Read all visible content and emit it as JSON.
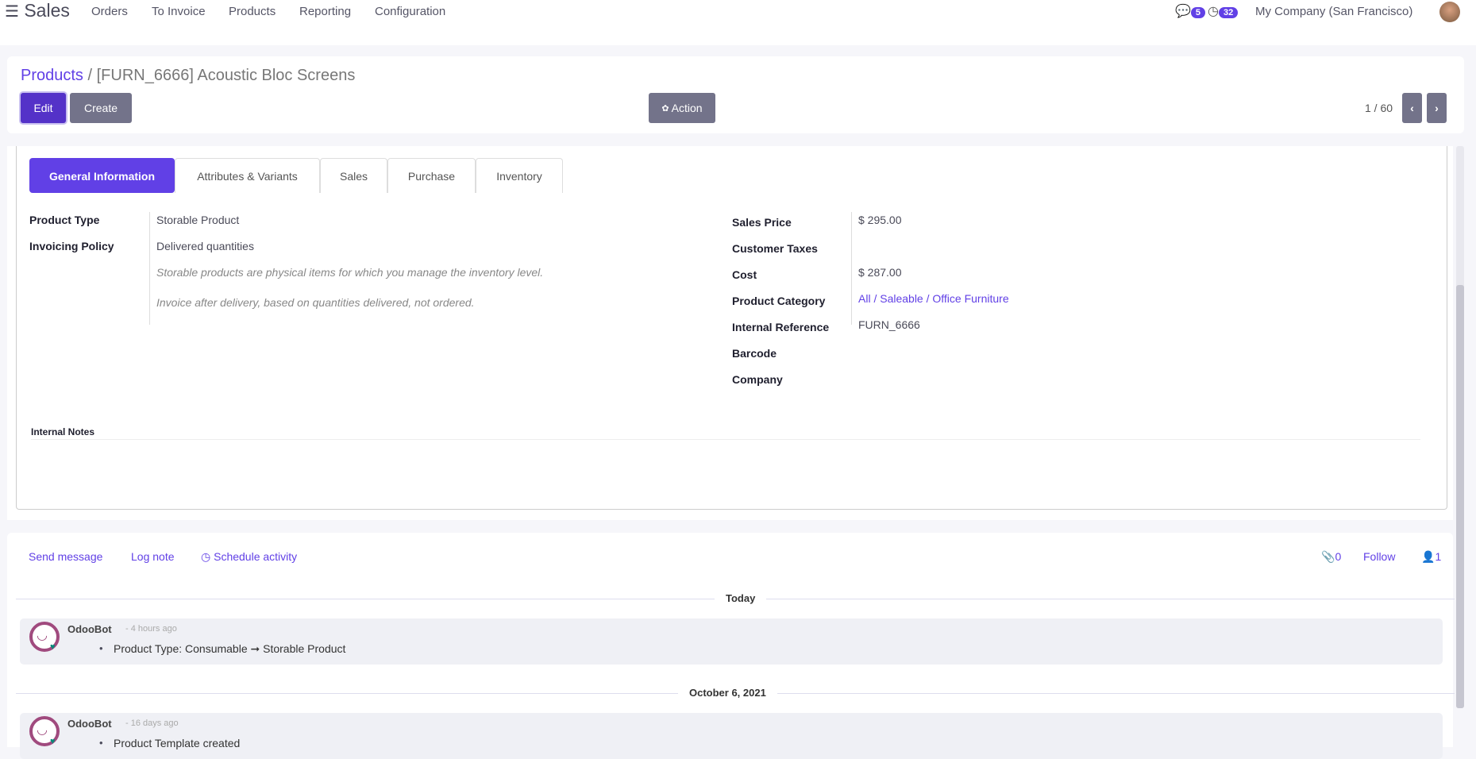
{
  "nav": {
    "app": "Sales",
    "menu": [
      "Orders",
      "To Invoice",
      "Products",
      "Reporting",
      "Configuration"
    ],
    "messages_count": "5",
    "activities_count": "32",
    "company": "My Company (San Francisco)"
  },
  "header": {
    "breadcrumb_parent": "Products",
    "breadcrumb_sep": "/",
    "title": "[FURN_6666] Acoustic Bloc Screens",
    "edit": "Edit",
    "create": "Create",
    "action": "Action",
    "pager": "1 / 60"
  },
  "tabs": [
    "General Information",
    "Attributes & Variants",
    "Sales",
    "Purchase",
    "Inventory"
  ],
  "left_fields": {
    "product_type_label": "Product Type",
    "product_type": "Storable Product",
    "invoicing_label": "Invoicing Policy",
    "invoicing": "Delivered quantities",
    "help1": "Storable products are physical items for which you manage the inventory level.",
    "help2": "Invoice after delivery, based on quantities delivered, not ordered."
  },
  "right_fields": [
    {
      "label": "Sales Price",
      "value": "$ 295.00"
    },
    {
      "label": "Customer Taxes",
      "value": ""
    },
    {
      "label": "Cost",
      "value": "$ 287.00"
    },
    {
      "label": "Product Category",
      "value": "All / Saleable / Office Furniture"
    },
    {
      "label": "Internal Reference",
      "value": "FURN_6666"
    },
    {
      "label": "Barcode",
      "value": ""
    },
    {
      "label": "Company",
      "value": ""
    }
  ],
  "internal_notes": "Internal Notes",
  "chatter": {
    "send": "Send message",
    "log": "Log note",
    "schedule": "Schedule activity",
    "attachments": "0",
    "follow": "Follow",
    "followers": "1",
    "groups": [
      {
        "date": "Today",
        "author": "OdooBot",
        "time": "- 4 hours ago",
        "body": "Product Type: Consumable ➞ Storable Product"
      },
      {
        "date": "October 6, 2021",
        "author": "OdooBot",
        "time": "- 16 days ago",
        "body": "Product Template created"
      }
    ]
  },
  "colors": {
    "accent": "#6140e6",
    "secondary": "#73738a",
    "avatar": "#a04a7e",
    "online": "#0a8a7a"
  }
}
